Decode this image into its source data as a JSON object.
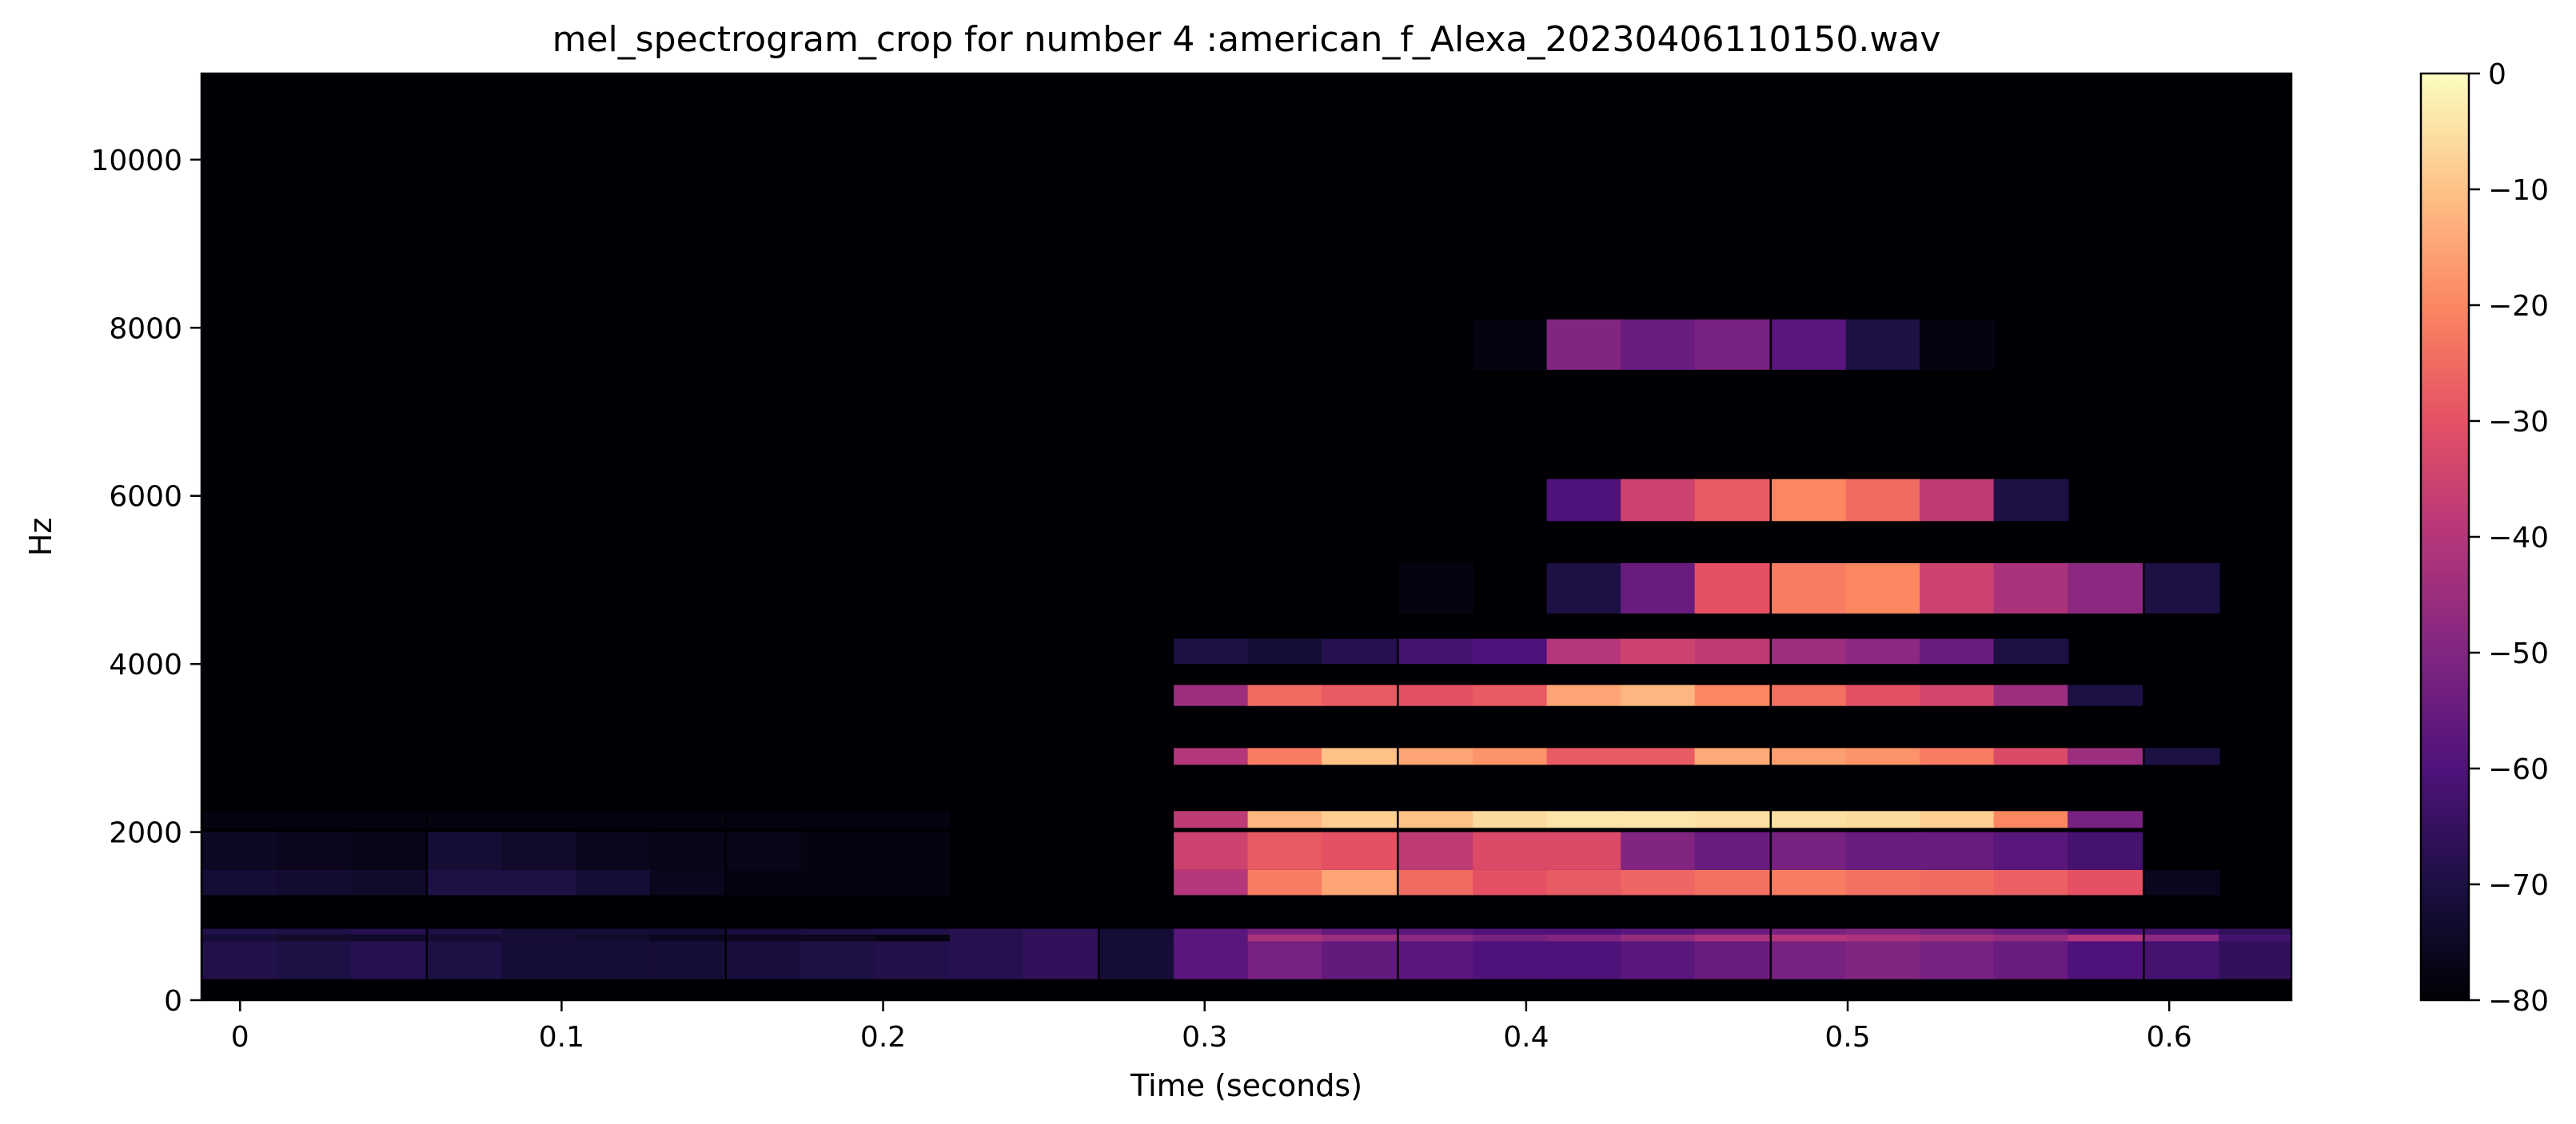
{
  "chart_data": {
    "type": "heatmap",
    "title": "mel_spectrogram_crop for number 4 :american_f_Alexa_20230406110150.wav",
    "xlabel": "Time (seconds)",
    "ylabel": "Hz",
    "xlim": [
      -0.012,
      0.638
    ],
    "ylim": [
      0,
      11025
    ],
    "x_ticks": [
      0,
      0.1,
      0.2,
      0.3,
      0.4,
      0.5,
      0.6
    ],
    "x_tick_labels": [
      "0",
      "0.1",
      "0.2",
      "0.3",
      "0.4",
      "0.5",
      "0.6"
    ],
    "y_ticks": [
      0,
      2000,
      4000,
      6000,
      8000,
      10000
    ],
    "y_tick_labels": [
      "0",
      "2000",
      "4000",
      "6000",
      "8000",
      "10000"
    ],
    "colormap": "magma",
    "colorbar": {
      "min": -80,
      "max": 0,
      "ticks": [
        0,
        -10,
        -20,
        -30,
        -40,
        -50,
        -60,
        -70,
        -80
      ],
      "tick_labels": [
        "0",
        "−10",
        "−20",
        "−30",
        "−40",
        "−50",
        "−60",
        "−70",
        "−80"
      ]
    },
    "frame_duration_s": 0.0232,
    "frame_times_s": [
      0,
      0.023,
      0.046,
      0.07,
      0.093,
      0.116,
      0.139,
      0.163,
      0.186,
      0.209,
      0.232,
      0.255,
      0.279,
      0.302,
      0.325,
      0.348,
      0.372,
      0.395,
      0.418,
      0.441,
      0.464,
      0.488,
      0.511,
      0.534,
      0.557,
      0.58,
      0.604,
      0.627
    ],
    "series": [
      {
        "name": "",
        "band_hz": [
          250,
          850
        ],
        "values_db": [
          -69,
          -70,
          -68,
          -70,
          -72,
          -72,
          -72,
          -71,
          -70,
          -69,
          -68,
          -66,
          -72,
          -58,
          -52,
          -56,
          -58,
          -60,
          -60,
          -58,
          -55,
          -52,
          -50,
          -52,
          -55,
          -60,
          -62,
          -66
        ]
      },
      {
        "name": "",
        "band_hz": [
          700,
          780
        ],
        "values_db": [
          -72,
          -74,
          -74,
          -73,
          -72,
          -74,
          -76,
          -76,
          -76,
          -78,
          -80,
          -80,
          -80,
          -58,
          -42,
          -45,
          -48,
          -52,
          -50,
          -46,
          -42,
          -40,
          -42,
          -44,
          -46,
          -40,
          -48,
          -62
        ]
      },
      {
        "name": "",
        "band_hz": [
          1250,
          1550
        ],
        "values_db": [
          -72,
          -73,
          -74,
          -70,
          -70,
          -72,
          -76,
          -78,
          -78,
          -78,
          -80,
          -80,
          -80,
          -40,
          -22,
          -15,
          -25,
          -30,
          -28,
          -26,
          -24,
          -22,
          -24,
          -25,
          -27,
          -30,
          -76,
          -80
        ]
      },
      {
        "name": "",
        "band_hz": [
          1550,
          2000
        ],
        "values_db": [
          -75,
          -76,
          -77,
          -72,
          -74,
          -76,
          -77,
          -77,
          -78,
          -78,
          -80,
          -80,
          -80,
          -35,
          -28,
          -30,
          -38,
          -32,
          -32,
          -50,
          -55,
          -52,
          -55,
          -55,
          -58,
          -62,
          -80,
          -80
        ]
      },
      {
        "name": "",
        "band_hz": [
          2050,
          2250
        ],
        "values_db": [
          -78,
          -78,
          -78,
          -78,
          -78,
          -78,
          -78,
          -78,
          -78,
          -78,
          -80,
          -80,
          -80,
          -38,
          -12,
          -8,
          -10,
          -6,
          -4,
          -4,
          -5,
          -5,
          -6,
          -8,
          -20,
          -52,
          -80,
          -80
        ]
      },
      {
        "name": "",
        "band_hz": [
          2800,
          3000
        ],
        "values_db": [
          -80,
          -80,
          -80,
          -80,
          -80,
          -80,
          -80,
          -80,
          -80,
          -80,
          -80,
          -80,
          -80,
          -40,
          -22,
          -10,
          -15,
          -18,
          -28,
          -28,
          -14,
          -16,
          -18,
          -22,
          -32,
          -45,
          -70,
          -80
        ]
      },
      {
        "name": "",
        "band_hz": [
          3500,
          3750
        ],
        "values_db": [
          -80,
          -80,
          -80,
          -80,
          -80,
          -80,
          -80,
          -80,
          -80,
          -80,
          -80,
          -80,
          -80,
          -45,
          -25,
          -28,
          -30,
          -28,
          -15,
          -12,
          -20,
          -24,
          -30,
          -34,
          -45,
          -70,
          -80,
          -80
        ]
      },
      {
        "name": "",
        "band_hz": [
          4000,
          4300
        ],
        "values_db": [
          -80,
          -80,
          -80,
          -80,
          -80,
          -80,
          -80,
          -80,
          -80,
          -80,
          -80,
          -80,
          -80,
          -70,
          -72,
          -68,
          -62,
          -60,
          -40,
          -35,
          -38,
          -45,
          -48,
          -55,
          -70,
          -80,
          -80,
          -80
        ]
      },
      {
        "name": "",
        "band_hz": [
          4600,
          5200
        ],
        "values_db": [
          -80,
          -80,
          -80,
          -80,
          -80,
          -80,
          -80,
          -80,
          -80,
          -80,
          -80,
          -80,
          -80,
          -80,
          -80,
          -80,
          -78,
          -80,
          -70,
          -55,
          -30,
          -22,
          -20,
          -35,
          -42,
          -48,
          -70,
          -80
        ]
      },
      {
        "name": "",
        "band_hz": [
          5700,
          6200
        ],
        "values_db": [
          -80,
          -80,
          -80,
          -80,
          -80,
          -80,
          -80,
          -80,
          -80,
          -80,
          -80,
          -80,
          -80,
          -80,
          -80,
          -80,
          -80,
          -80,
          -60,
          -35,
          -28,
          -20,
          -25,
          -38,
          -70,
          -80,
          -80,
          -80
        ]
      },
      {
        "name": "",
        "band_hz": [
          7500,
          8100
        ],
        "values_db": [
          -80,
          -80,
          -80,
          -80,
          -80,
          -80,
          -80,
          -80,
          -80,
          -80,
          -80,
          -80,
          -80,
          -80,
          -80,
          -80,
          -80,
          -78,
          -50,
          -55,
          -52,
          -58,
          -70,
          -78,
          -80,
          -80,
          -80,
          -80
        ]
      }
    ]
  }
}
